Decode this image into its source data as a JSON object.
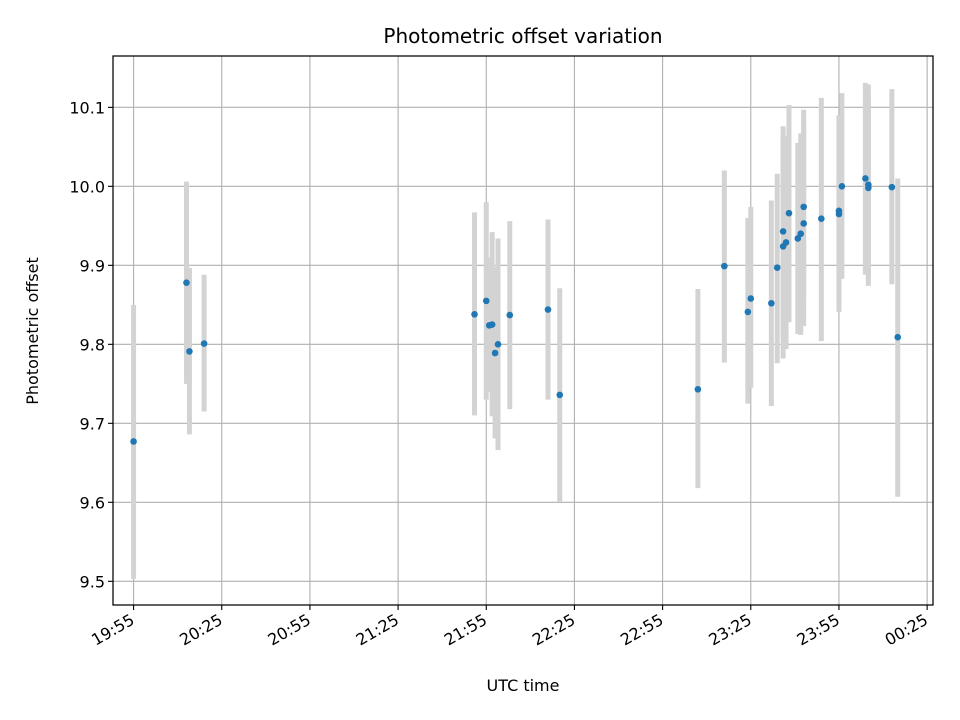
{
  "chart_data": {
    "type": "scatter",
    "title": "Photometric offset variation",
    "xlabel": "UTC time",
    "ylabel": "Photometric offset",
    "x_tick_labels": [
      "19:55",
      "20:25",
      "20:55",
      "21:25",
      "21:55",
      "22:25",
      "22:55",
      "23:25",
      "23:55",
      "00:25"
    ],
    "y_tick_labels": [
      "9.5",
      "9.6",
      "9.7",
      "9.8",
      "9.9",
      "10.0",
      "10.1"
    ],
    "xlim": [
      "19:48",
      "00:27"
    ],
    "ylim": [
      9.47,
      10.165
    ],
    "grid": true,
    "marker_color": "#1f77b4",
    "errorbar_color": "#d3d3d3",
    "points": [
      {
        "t": "19:55",
        "y": 9.677,
        "lo": 9.503,
        "hi": 9.85
      },
      {
        "t": "20:13",
        "y": 9.878,
        "lo": 9.75,
        "hi": 10.006
      },
      {
        "t": "20:14",
        "y": 9.791,
        "lo": 9.686,
        "hi": 9.897
      },
      {
        "t": "20:19",
        "y": 9.801,
        "lo": 9.715,
        "hi": 9.888
      },
      {
        "t": "21:51",
        "y": 9.838,
        "lo": 9.71,
        "hi": 9.967
      },
      {
        "t": "21:55",
        "y": 9.855,
        "lo": 9.73,
        "hi": 9.98
      },
      {
        "t": "21:56",
        "y": 9.824,
        "lo": 9.74,
        "hi": 9.91
      },
      {
        "t": "21:57",
        "y": 9.825,
        "lo": 9.709,
        "hi": 9.942
      },
      {
        "t": "21:58",
        "y": 9.789,
        "lo": 9.681,
        "hi": 9.898
      },
      {
        "t": "21:59",
        "y": 9.8,
        "lo": 9.666,
        "hi": 9.934
      },
      {
        "t": "22:03",
        "y": 9.837,
        "lo": 9.718,
        "hi": 9.956
      },
      {
        "t": "22:16",
        "y": 9.844,
        "lo": 9.73,
        "hi": 9.958
      },
      {
        "t": "22:20",
        "y": 9.736,
        "lo": 9.601,
        "hi": 9.871
      },
      {
        "t": "23:07",
        "y": 9.743,
        "lo": 9.618,
        "hi": 9.87
      },
      {
        "t": "23:16",
        "y": 9.899,
        "lo": 9.777,
        "hi": 10.02
      },
      {
        "t": "23:24",
        "y": 9.841,
        "lo": 9.725,
        "hi": 9.96
      },
      {
        "t": "23:25",
        "y": 9.858,
        "lo": 9.745,
        "hi": 9.974
      },
      {
        "t": "23:32",
        "y": 9.852,
        "lo": 9.722,
        "hi": 9.982
      },
      {
        "t": "23:34",
        "y": 9.897,
        "lo": 9.776,
        "hi": 10.016
      },
      {
        "t": "23:36",
        "y": 9.924,
        "lo": 9.782,
        "hi": 10.066
      },
      {
        "t": "23:36",
        "y": 9.943,
        "lo": 9.81,
        "hi": 10.076
      },
      {
        "t": "23:37",
        "y": 9.929,
        "lo": 9.794,
        "hi": 10.064
      },
      {
        "t": "23:38",
        "y": 9.966,
        "lo": 9.828,
        "hi": 10.103
      },
      {
        "t": "23:41",
        "y": 9.934,
        "lo": 9.813,
        "hi": 10.055
      },
      {
        "t": "23:42",
        "y": 9.94,
        "lo": 9.812,
        "hi": 10.067
      },
      {
        "t": "23:43",
        "y": 9.974,
        "lo": 9.855,
        "hi": 10.097
      },
      {
        "t": "23:43",
        "y": 9.953,
        "lo": 9.823,
        "hi": 10.083
      },
      {
        "t": "23:49",
        "y": 9.959,
        "lo": 9.804,
        "hi": 10.112
      },
      {
        "t": "23:55",
        "y": 9.965,
        "lo": 9.841,
        "hi": 10.089
      },
      {
        "t": "23:55",
        "y": 9.969,
        "lo": 9.848,
        "hi": 10.09
      },
      {
        "t": "23:56",
        "y": 10.0,
        "lo": 9.883,
        "hi": 10.118
      },
      {
        "t": "00:04",
        "y": 10.01,
        "lo": 9.888,
        "hi": 10.131
      },
      {
        "t": "00:05",
        "y": 10.002,
        "lo": 9.874,
        "hi": 10.129
      },
      {
        "t": "00:05",
        "y": 9.998,
        "lo": 9.883,
        "hi": 10.113
      },
      {
        "t": "00:13",
        "y": 9.999,
        "lo": 9.876,
        "hi": 10.123
      },
      {
        "t": "00:15",
        "y": 9.809,
        "lo": 9.607,
        "hi": 10.01
      }
    ]
  }
}
